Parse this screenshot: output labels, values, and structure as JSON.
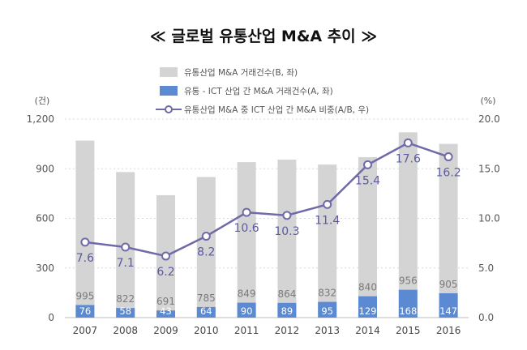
{
  "title": "≪ 글로벌 유통산업 M&A 추이 ≫",
  "left_unit": "(건)",
  "right_unit": "(%)",
  "colors": {
    "gray_bar": "#d4d4d4",
    "blue_bar": "#5b8ad2",
    "line": "#6f6aa8",
    "axis_text": "#555555",
    "value_text": "#5a5aa0",
    "bar_label": "#7a7a7a",
    "blue_label": "#ffffff",
    "grid": "#d9d9d9"
  },
  "chart_data": {
    "type": "bar",
    "categories": [
      "2007",
      "2008",
      "2009",
      "2010",
      "2011",
      "2012",
      "2013",
      "2014",
      "2015",
      "2016"
    ],
    "series": [
      {
        "name": "유통산업 M&A 거래건수(B, 좌)",
        "kind": "bar",
        "axis": "left",
        "values": [
          1070,
          880,
          740,
          850,
          940,
          955,
          925,
          970,
          1120,
          1050
        ],
        "labels": [
          "995",
          "822",
          "691",
          "785",
          "849",
          "864",
          "832",
          "840",
          "956",
          "905"
        ]
      },
      {
        "name": "유통 - ICT 산업 간 M&A 거래건수(A, 좌)",
        "kind": "bar",
        "axis": "left",
        "values": [
          76,
          58,
          43,
          64,
          90,
          89,
          95,
          129,
          168,
          147
        ]
      },
      {
        "name": "유통산업 M&A 중 ICT 산업 간 M&A 비중(A/B, 우)",
        "kind": "line",
        "axis": "right",
        "values": [
          7.6,
          7.1,
          6.2,
          8.2,
          10.6,
          10.3,
          11.4,
          15.4,
          17.6,
          16.2
        ]
      }
    ],
    "left_axis": {
      "ylim": [
        0,
        1200
      ],
      "ticks": [
        0,
        300,
        600,
        900,
        1200
      ],
      "tick_labels": [
        "0",
        "300",
        "600",
        "900",
        "1,200"
      ]
    },
    "right_axis": {
      "ylim": [
        0,
        20
      ],
      "ticks": [
        0,
        5,
        10,
        15,
        20
      ],
      "tick_labels": [
        "0.0",
        "5.0",
        "10.0",
        "15.0",
        "20.0"
      ]
    },
    "grid": true,
    "legend_position": "top"
  }
}
